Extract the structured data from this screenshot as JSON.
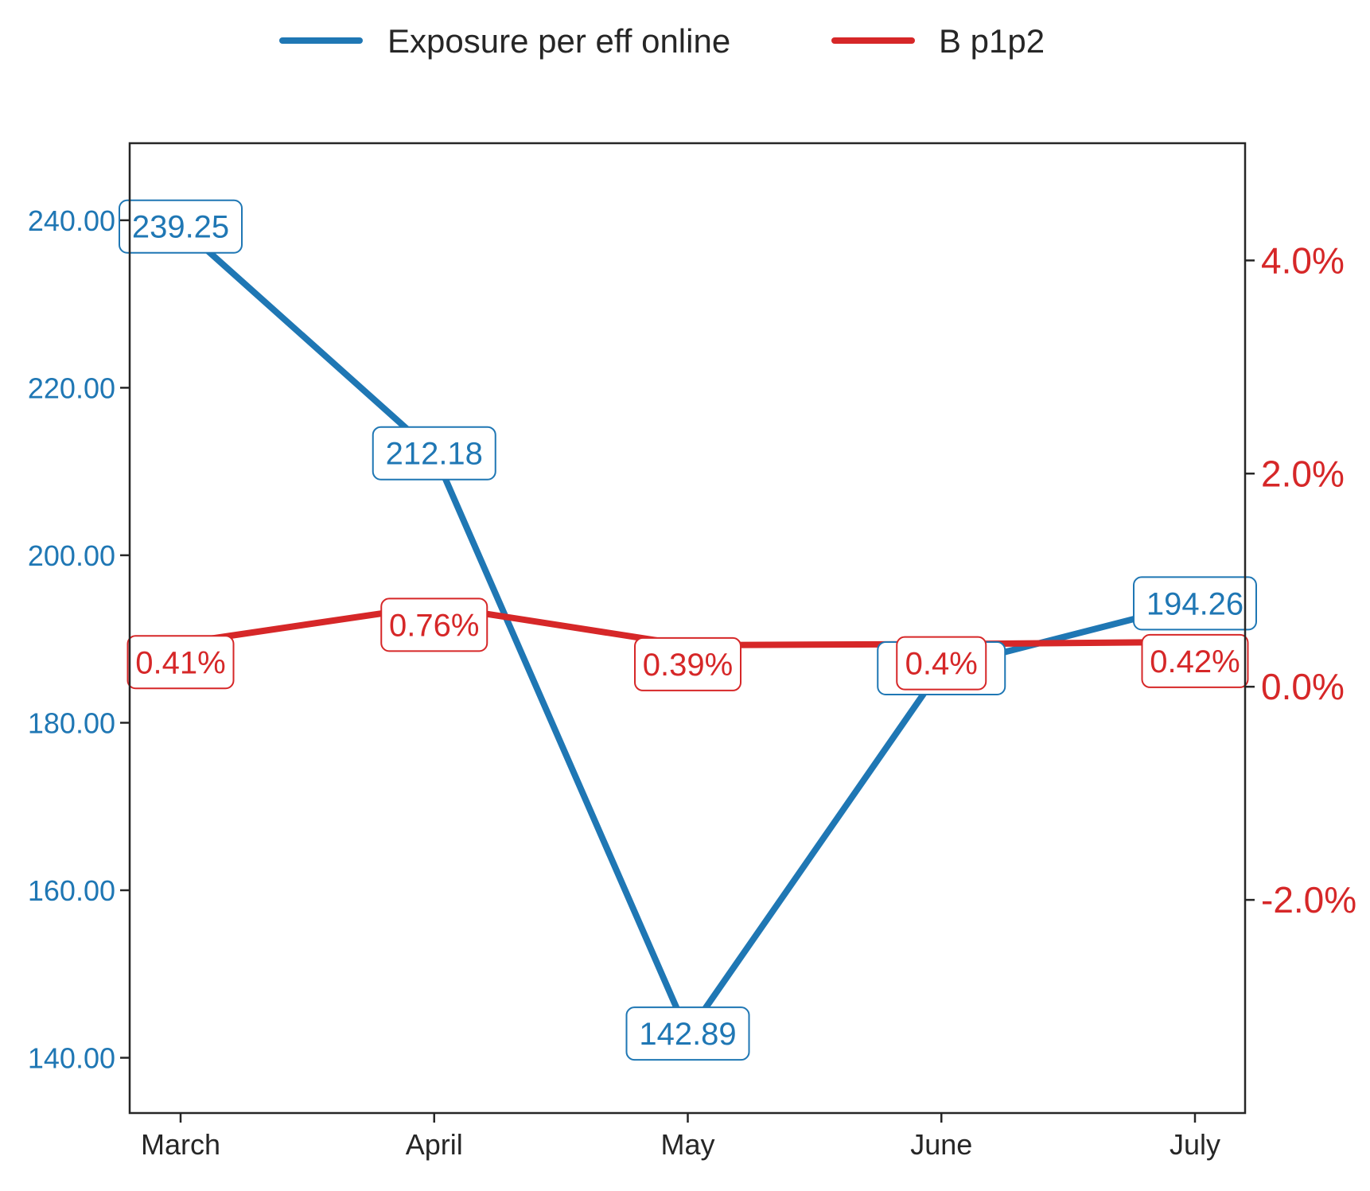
{
  "chart_data": {
    "type": "line",
    "title": "",
    "xlabel": "",
    "ylabel": "",
    "categories": [
      "March",
      "April",
      "May",
      "June",
      "July"
    ],
    "legend": {
      "placement": "top-center",
      "entries": [
        "Exposure per eff online",
        "B p1p2"
      ]
    },
    "series": [
      {
        "name": "Exposure per eff online",
        "axis": "left",
        "color": "#1f77b4",
        "values": [
          239.25,
          212.18,
          142.89,
          186.5,
          194.26
        ],
        "labels": [
          "239.25",
          "212.18",
          "142.89",
          "",
          "194.26"
        ]
      },
      {
        "name": "B p1p2",
        "axis": "right",
        "color": "#d62728",
        "values": [
          0.41,
          0.76,
          0.39,
          0.4,
          0.42
        ],
        "labels": [
          "0.41%",
          "0.76%",
          "0.39%",
          "0.4%",
          "0.42%"
        ]
      }
    ],
    "left_axis": {
      "range": [
        133.4,
        249.2
      ],
      "ticks": [
        140,
        160,
        180,
        200,
        220,
        240
      ],
      "tick_labels": [
        "140.00",
        "160.00",
        "180.00",
        "200.00",
        "220.00",
        "240.00"
      ],
      "color": "#1f77b4"
    },
    "right_axis": {
      "range": [
        -4.0,
        5.1
      ],
      "ticks": [
        -2,
        0,
        2,
        4
      ],
      "tick_labels": [
        "-2.0%",
        "0.0%",
        "2.0%",
        "4.0%"
      ],
      "color": "#d62728"
    },
    "grid": false
  }
}
